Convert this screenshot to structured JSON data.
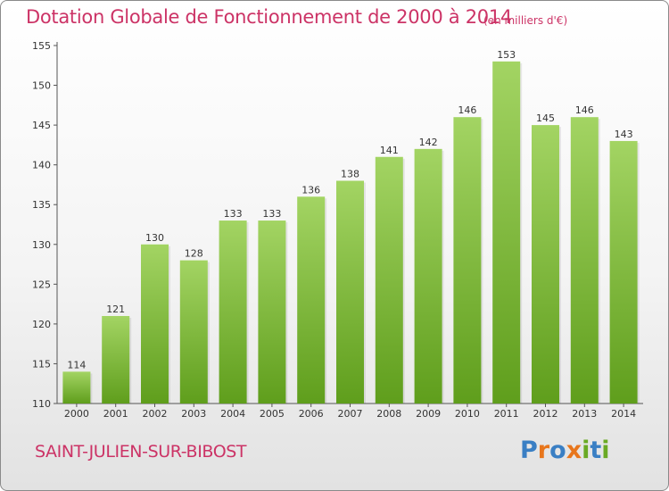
{
  "header": {
    "title": "Dotation Globale de Fonctionnement de 2000 à 2014",
    "unit": "(en milliers d'€)"
  },
  "footer": {
    "commune": "SAINT-JULIEN-SUR-BIBOST",
    "logo": "Proxiti"
  },
  "colors": {
    "accent": "#cc3366",
    "bar_top": "#a3d463",
    "bar_bottom": "#5f9e1c",
    "logo_letters": [
      "#3a7fc4",
      "#e8761c",
      "#3a7fc4",
      "#e8761c",
      "#6aaa24",
      "#3a7fc4",
      "#6aaa24"
    ]
  },
  "chart_data": {
    "type": "bar",
    "title": "Dotation Globale de Fonctionnement de 2000 à 2014",
    "subtitle": "(en milliers d'€)",
    "categories": [
      "2000",
      "2001",
      "2002",
      "2003",
      "2004",
      "2005",
      "2006",
      "2007",
      "2008",
      "2009",
      "2010",
      "2011",
      "2012",
      "2013",
      "2014"
    ],
    "values": [
      114,
      121,
      130,
      128,
      133,
      133,
      136,
      138,
      141,
      142,
      146,
      153,
      145,
      146,
      143
    ],
    "ylim": [
      110,
      155
    ],
    "yticks": [
      110,
      115,
      120,
      125,
      130,
      135,
      140,
      145,
      150,
      155
    ],
    "xlabel": "",
    "ylabel": "",
    "grid": false,
    "data_labels": true
  }
}
